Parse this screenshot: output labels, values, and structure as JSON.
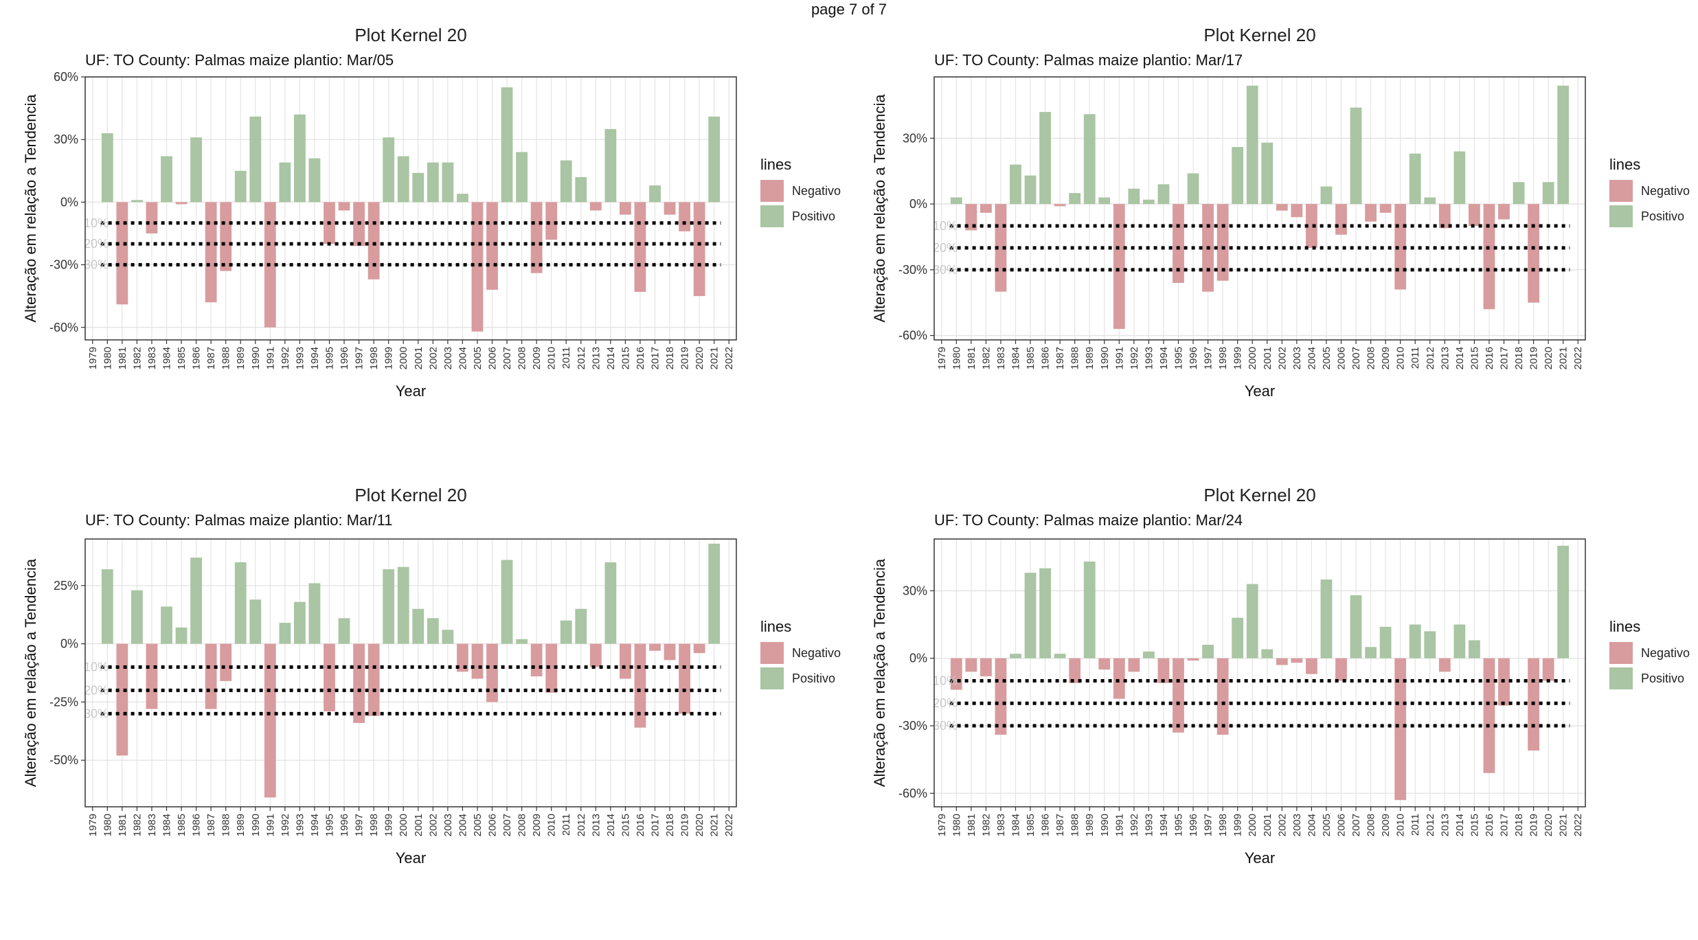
{
  "page_label": "page 7 of 7",
  "colors": {
    "negativo": "#d89c9e",
    "positivo": "#a9c5a3",
    "grid": "#e4e4e4",
    "panel_border": "#333333",
    "threshold": "#000000"
  },
  "legend": {
    "title": "lines",
    "items": [
      "Negativo",
      "Positivo"
    ]
  },
  "chart_data": [
    {
      "type": "bar",
      "title": "Plot Kernel 20",
      "subtitle": "UF: TO   County: Palmas    maize    plantio: Mar/05",
      "xlabel": "Year",
      "ylabel": "Alteração em relação a Tendencia",
      "categories": [
        "1979",
        "1980",
        "1981",
        "1982",
        "1983",
        "1984",
        "1985",
        "1986",
        "1987",
        "1988",
        "1989",
        "1990",
        "1991",
        "1992",
        "1993",
        "1994",
        "1995",
        "1996",
        "1997",
        "1998",
        "1999",
        "2000",
        "2001",
        "2002",
        "2003",
        "2004",
        "2005",
        "2006",
        "2007",
        "2008",
        "2009",
        "2010",
        "2011",
        "2012",
        "2013",
        "2014",
        "2015",
        "2016",
        "2017",
        "2018",
        "2019",
        "2020",
        "2021",
        "2022"
      ],
      "values": [
        null,
        33,
        -49,
        1,
        -15,
        22,
        -1,
        31,
        -48,
        -33,
        15,
        41,
        -60,
        19,
        42,
        21,
        -20,
        -4,
        -21,
        -37,
        31,
        22,
        14,
        19,
        19,
        4,
        -62,
        -42,
        55,
        24,
        -34,
        -18,
        20,
        12,
        -4,
        35,
        -6,
        -43,
        8,
        -6,
        -14,
        -45,
        41,
        null
      ],
      "ylim": [
        -66,
        60
      ],
      "yticks": [
        -60,
        -30,
        0,
        30,
        60
      ],
      "ytick_labels": [
        "-60%",
        "-30%",
        "0%",
        "30%",
        "60%"
      ],
      "thresholds": [
        -10,
        -20,
        -30
      ],
      "threshold_labels": [
        "10%",
        "20%",
        "30%"
      ],
      "legend_series": [
        "Negativo",
        "Positivo"
      ]
    },
    {
      "type": "bar",
      "title": "Plot Kernel 20",
      "subtitle": "UF: TO   County: Palmas    maize    plantio: Mar/17",
      "xlabel": "Year",
      "ylabel": "Alteração em relação a Tendencia",
      "categories": [
        "1979",
        "1980",
        "1981",
        "1982",
        "1983",
        "1984",
        "1985",
        "1986",
        "1987",
        "1988",
        "1989",
        "1990",
        "1991",
        "1992",
        "1993",
        "1994",
        "1995",
        "1996",
        "1997",
        "1998",
        "1999",
        "2000",
        "2001",
        "2002",
        "2003",
        "2004",
        "2005",
        "2006",
        "2007",
        "2008",
        "2009",
        "2010",
        "2011",
        "2012",
        "2013",
        "2014",
        "2015",
        "2016",
        "2017",
        "2018",
        "2019",
        "2020",
        "2021",
        "2022"
      ],
      "values": [
        null,
        3,
        -12,
        -4,
        -40,
        18,
        13,
        42,
        -1,
        5,
        41,
        3,
        -57,
        7,
        2,
        9,
        -36,
        14,
        -40,
        -35,
        26,
        54,
        28,
        -3,
        -6,
        -20,
        8,
        -14,
        44,
        -8,
        -4,
        -39,
        23,
        3,
        -11,
        24,
        -10,
        -48,
        -7,
        10,
        -45,
        10,
        54,
        null
      ],
      "ylim": [
        -62,
        58
      ],
      "yticks": [
        -60,
        -30,
        0,
        30
      ],
      "ytick_labels": [
        "-60%",
        "-30%",
        "0%",
        "30%"
      ],
      "thresholds": [
        -10,
        -20,
        -30
      ],
      "threshold_labels": [
        "10%",
        "20%",
        "30%"
      ],
      "legend_series": [
        "Negativo",
        "Positivo"
      ]
    },
    {
      "type": "bar",
      "title": "Plot Kernel 20",
      "subtitle": "UF: TO   County: Palmas    maize    plantio: Mar/11",
      "xlabel": "Year",
      "ylabel": "Alteração em relação a Tendencia",
      "categories": [
        "1979",
        "1980",
        "1981",
        "1982",
        "1983",
        "1984",
        "1985",
        "1986",
        "1987",
        "1988",
        "1989",
        "1990",
        "1991",
        "1992",
        "1993",
        "1994",
        "1995",
        "1996",
        "1997",
        "1998",
        "1999",
        "2000",
        "2001",
        "2002",
        "2003",
        "2004",
        "2005",
        "2006",
        "2007",
        "2008",
        "2009",
        "2010",
        "2011",
        "2012",
        "2013",
        "2014",
        "2015",
        "2016",
        "2017",
        "2018",
        "2019",
        "2020",
        "2021",
        "2022"
      ],
      "values": [
        null,
        32,
        -48,
        23,
        -28,
        16,
        7,
        37,
        -28,
        -16,
        35,
        19,
        -66,
        9,
        18,
        26,
        -29,
        11,
        -34,
        -31,
        32,
        33,
        15,
        11,
        6,
        -12,
        -15,
        -25,
        36,
        2,
        -14,
        -21,
        10,
        15,
        -10,
        35,
        -15,
        -36,
        -3,
        -7,
        -30,
        -4,
        43,
        null
      ],
      "ylim": [
        -70,
        45
      ],
      "yticks": [
        -50,
        -25,
        0,
        25
      ],
      "ytick_labels": [
        "-50%",
        "-25%",
        "0%",
        "25%"
      ],
      "thresholds": [
        -10,
        -20,
        -30
      ],
      "threshold_labels": [
        "10%",
        "20%",
        "30%"
      ],
      "legend_series": [
        "Negativo",
        "Positivo"
      ]
    },
    {
      "type": "bar",
      "title": "Plot Kernel 20",
      "subtitle": "UF: TO   County: Palmas    maize    plantio: Mar/24",
      "xlabel": "Year",
      "ylabel": "Alteração em relação a Tendencia",
      "categories": [
        "1979",
        "1980",
        "1981",
        "1982",
        "1983",
        "1984",
        "1985",
        "1986",
        "1987",
        "1988",
        "1989",
        "1990",
        "1991",
        "1992",
        "1993",
        "1994",
        "1995",
        "1996",
        "1997",
        "1998",
        "1999",
        "2000",
        "2001",
        "2002",
        "2003",
        "2004",
        "2005",
        "2006",
        "2007",
        "2008",
        "2009",
        "2010",
        "2011",
        "2012",
        "2013",
        "2014",
        "2015",
        "2016",
        "2017",
        "2018",
        "2019",
        "2020",
        "2021",
        "2022"
      ],
      "values": [
        null,
        -14,
        -6,
        -8,
        -34,
        2,
        38,
        40,
        2,
        -11,
        43,
        -5,
        -18,
        -6,
        3,
        -11,
        -33,
        -1,
        6,
        -34,
        18,
        33,
        4,
        -3,
        -2,
        -7,
        35,
        -10,
        28,
        5,
        14,
        -63,
        15,
        12,
        -6,
        15,
        8,
        -51,
        -21,
        0,
        -41,
        -10,
        50,
        null
      ],
      "ylim": [
        -66,
        53
      ],
      "yticks": [
        -60,
        -30,
        0,
        30
      ],
      "ytick_labels": [
        "-60%",
        "-30%",
        "0%",
        "30%"
      ],
      "thresholds": [
        -10,
        -20,
        -30
      ],
      "threshold_labels": [
        "10%",
        "20%",
        "30%"
      ],
      "legend_series": [
        "Negativo",
        "Positivo"
      ]
    }
  ]
}
